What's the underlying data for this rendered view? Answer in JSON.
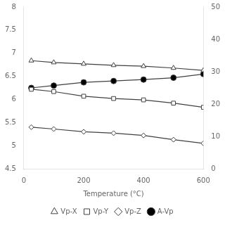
{
  "chart_data": {
    "type": "line",
    "x_label": "Temperature (°C)",
    "x": [
      25,
      100,
      200,
      300,
      400,
      500,
      600
    ],
    "series": [
      {
        "name": "Vp-X",
        "color": "#404040",
        "marker": "triangle-open",
        "values": [
          6.84,
          6.8,
          6.77,
          6.74,
          6.72,
          6.68,
          6.63
        ]
      },
      {
        "name": "Vp-Y",
        "color": "#404040",
        "marker": "square-open",
        "values": [
          6.22,
          6.17,
          6.07,
          6.02,
          5.99,
          5.92,
          5.83
        ]
      },
      {
        "name": "Vp-Z",
        "color": "#404040",
        "marker": "diamond-open",
        "values": [
          5.4,
          5.36,
          5.3,
          5.27,
          5.22,
          5.13,
          5.05
        ]
      },
      {
        "name": "A-Vp",
        "color": "#404040",
        "marker": "circle",
        "values": [
          6.25,
          6.3,
          6.37,
          6.4,
          6.43,
          6.47,
          6.55
        ]
      }
    ],
    "xlim": [
      0,
      600
    ],
    "xticks": [
      0,
      200,
      400,
      600
    ],
    "ylim": [
      4.5,
      8.0
    ],
    "yticks": [
      4.5,
      5,
      5.5,
      6,
      6.5,
      7,
      7.5,
      8
    ],
    "y2lim": [
      0,
      50
    ],
    "y2ticks": [
      0,
      10,
      20,
      30,
      40,
      50
    ],
    "grid": false,
    "legend": "bottom"
  }
}
